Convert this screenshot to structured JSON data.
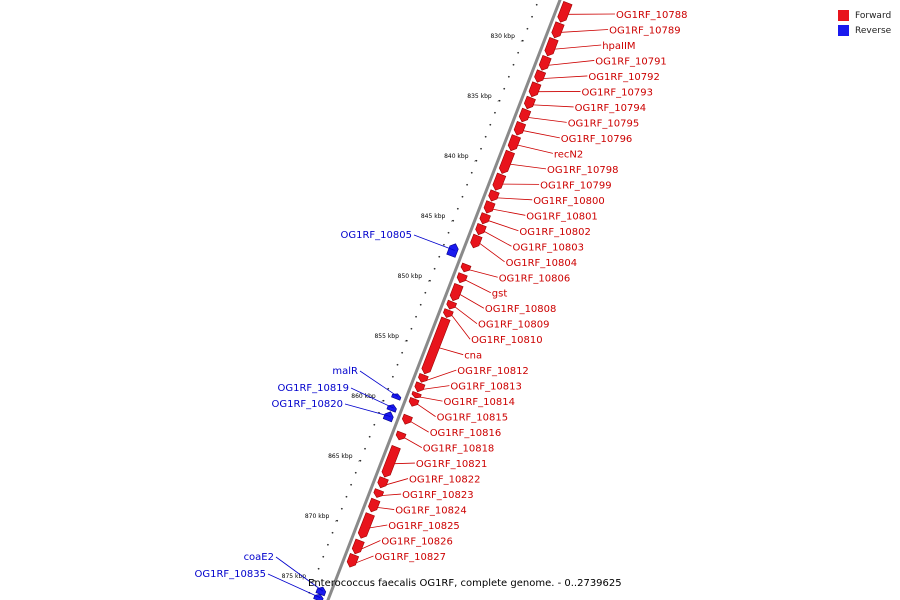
{
  "legend": {
    "forward_label": "Forward",
    "reverse_label": "Reverse",
    "forward_color": "#e8141c",
    "reverse_color": "#1a1aee"
  },
  "caption": "Enterococcus faecalis OG1RF, complete genome. - 0..2739625",
  "colors": {
    "backbone": "#8a8a8a",
    "forward_gene": "#e8141c",
    "reverse_gene": "#1a1aee",
    "forward_text": "#cc0000",
    "reverse_text": "#0000cc"
  },
  "chart_data": {
    "type": "genome-map",
    "range_kbp": [
      826,
      876
    ],
    "ticks": [
      "830 kbp",
      "835 kbp",
      "840 kbp",
      "845 kbp",
      "850 kbp",
      "855 kbp",
      "860 kbp",
      "865 kbp",
      "870 kbp",
      "875 kbp"
    ],
    "tick_values_kbp": [
      830,
      835,
      840,
      845,
      850,
      855,
      860,
      865,
      870,
      875
    ],
    "forward_genes": [
      {
        "name": "OG1RF_10788",
        "start_kbp": 826.0,
        "end_kbp": 827.6
      },
      {
        "name": "OG1RF_10789",
        "start_kbp": 827.7,
        "end_kbp": 828.9
      },
      {
        "name": "hpaIIM",
        "start_kbp": 829.0,
        "end_kbp": 830.4
      },
      {
        "name": "OG1RF_10791",
        "start_kbp": 830.5,
        "end_kbp": 831.6
      },
      {
        "name": "OG1RF_10792",
        "start_kbp": 831.7,
        "end_kbp": 832.6
      },
      {
        "name": "OG1RF_10793",
        "start_kbp": 832.7,
        "end_kbp": 833.8
      },
      {
        "name": "OG1RF_10794",
        "start_kbp": 833.9,
        "end_kbp": 834.8
      },
      {
        "name": "OG1RF_10795",
        "start_kbp": 834.9,
        "end_kbp": 835.9
      },
      {
        "name": "OG1RF_10796",
        "start_kbp": 836.0,
        "end_kbp": 837.0
      },
      {
        "name": "recN2",
        "start_kbp": 837.1,
        "end_kbp": 838.3
      },
      {
        "name": "OG1RF_10798",
        "start_kbp": 838.4,
        "end_kbp": 840.2
      },
      {
        "name": "OG1RF_10799",
        "start_kbp": 840.3,
        "end_kbp": 841.6
      },
      {
        "name": "OG1RF_10800",
        "start_kbp": 841.7,
        "end_kbp": 842.5
      },
      {
        "name": "OG1RF_10801",
        "start_kbp": 842.6,
        "end_kbp": 843.5
      },
      {
        "name": "OG1RF_10802",
        "start_kbp": 843.6,
        "end_kbp": 844.4
      },
      {
        "name": "OG1RF_10803",
        "start_kbp": 844.5,
        "end_kbp": 845.3
      },
      {
        "name": "OG1RF_10804",
        "start_kbp": 845.4,
        "end_kbp": 846.4
      },
      {
        "name": "OG1RF_10806",
        "start_kbp": 847.8,
        "end_kbp": 848.4
      },
      {
        "name": "gst",
        "start_kbp": 848.6,
        "end_kbp": 849.3
      },
      {
        "name": "OG1RF_10808",
        "start_kbp": 849.5,
        "end_kbp": 850.8
      },
      {
        "name": "OG1RF_10809",
        "start_kbp": 850.9,
        "end_kbp": 851.5
      },
      {
        "name": "OG1RF_10810",
        "start_kbp": 851.6,
        "end_kbp": 852.2
      },
      {
        "name": "cna",
        "start_kbp": 852.3,
        "end_kbp": 856.9
      },
      {
        "name": "OG1RF_10812",
        "start_kbp": 857.0,
        "end_kbp": 857.6
      },
      {
        "name": "OG1RF_10813",
        "start_kbp": 857.7,
        "end_kbp": 858.4
      },
      {
        "name": "OG1RF_10814",
        "start_kbp": 858.5,
        "end_kbp": 858.9
      },
      {
        "name": "OG1RF_10815",
        "start_kbp": 859.0,
        "end_kbp": 859.6
      },
      {
        "name": "OG1RF_10816",
        "start_kbp": 860.4,
        "end_kbp": 861.1
      },
      {
        "name": "OG1RF_10818",
        "start_kbp": 861.8,
        "end_kbp": 862.4
      },
      {
        "name": "OG1RF_10821",
        "start_kbp": 863.0,
        "end_kbp": 865.5
      },
      {
        "name": "OG1RF_10822",
        "start_kbp": 865.6,
        "end_kbp": 866.4
      },
      {
        "name": "OG1RF_10823",
        "start_kbp": 866.6,
        "end_kbp": 867.2
      },
      {
        "name": "OG1RF_10824",
        "start_kbp": 867.4,
        "end_kbp": 868.4
      },
      {
        "name": "OG1RF_10825",
        "start_kbp": 868.6,
        "end_kbp": 870.6
      },
      {
        "name": "OG1RF_10826",
        "start_kbp": 870.8,
        "end_kbp": 871.9
      },
      {
        "name": "OG1RF_10827",
        "start_kbp": 872.0,
        "end_kbp": 873.0
      }
    ],
    "reverse_genes": [
      {
        "name": "OG1RF_10805",
        "start_kbp": 846.6,
        "end_kbp": 847.6
      },
      {
        "name": "malR",
        "start_kbp": 859.1,
        "end_kbp": 859.5
      },
      {
        "name": "OG1RF_10819",
        "start_kbp": 860.0,
        "end_kbp": 860.5
      },
      {
        "name": "OG1RF_10820",
        "start_kbp": 860.6,
        "end_kbp": 861.3
      },
      {
        "name": "coaE2",
        "start_kbp": 875.2,
        "end_kbp": 875.8
      },
      {
        "name": "OG1RF_10835",
        "start_kbp": 875.8,
        "end_kbp": 876.3
      }
    ]
  }
}
